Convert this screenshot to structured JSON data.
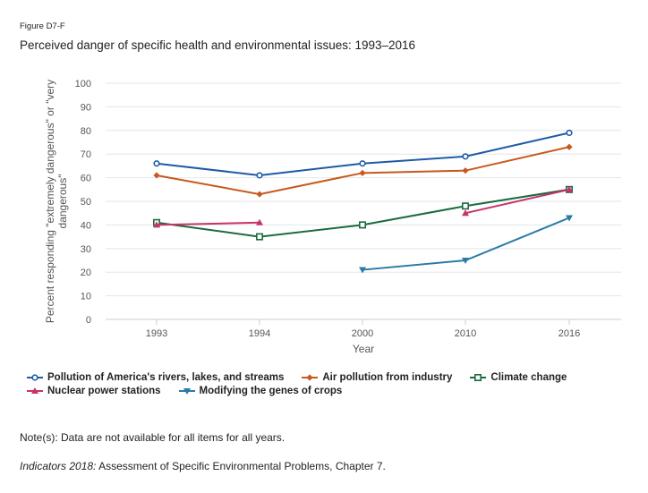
{
  "figure_label": "Figure D7-F",
  "title": "Perceived danger of specific health and environmental issues: 1993–2016",
  "note": "Note(s): Data are not available for all items for all years.",
  "source": {
    "italic": "Indicators 2018:",
    "rest": " Assessment of Specific Environmental Problems, Chapter 7."
  },
  "chart_data": {
    "type": "line",
    "categories": [
      "1993",
      "1994",
      "2000",
      "2010",
      "2016"
    ],
    "xlabel": "Year",
    "ylabel": "Percent responding \"extremely dangerous\" or \"very dangerous\"",
    "ylim": [
      0,
      100
    ],
    "yticks": [
      0,
      10,
      20,
      30,
      40,
      50,
      60,
      70,
      80,
      90,
      100
    ],
    "grid": true,
    "legend_position": "bottom-left",
    "series": [
      {
        "name": "Pollution of America's rivers, lakes, and streams",
        "color": "#1f5aa6",
        "marker": "circle",
        "values": [
          66,
          61,
          66,
          69,
          79
        ]
      },
      {
        "name": "Air pollution from industry",
        "color": "#c8581e",
        "marker": "diamond",
        "values": [
          61,
          53,
          62,
          63,
          73
        ]
      },
      {
        "name": "Climate change",
        "color": "#1b6b3e",
        "marker": "square",
        "values": [
          41,
          35,
          40,
          48,
          55
        ]
      },
      {
        "name": "Nuclear power stations",
        "color": "#c7336c",
        "marker": "triangle-up",
        "values": [
          40,
          41,
          null,
          45,
          55
        ]
      },
      {
        "name": "Modifying the genes of crops",
        "color": "#2b7ba6",
        "marker": "triangle-down",
        "values": [
          null,
          null,
          21,
          25,
          43
        ]
      }
    ]
  }
}
